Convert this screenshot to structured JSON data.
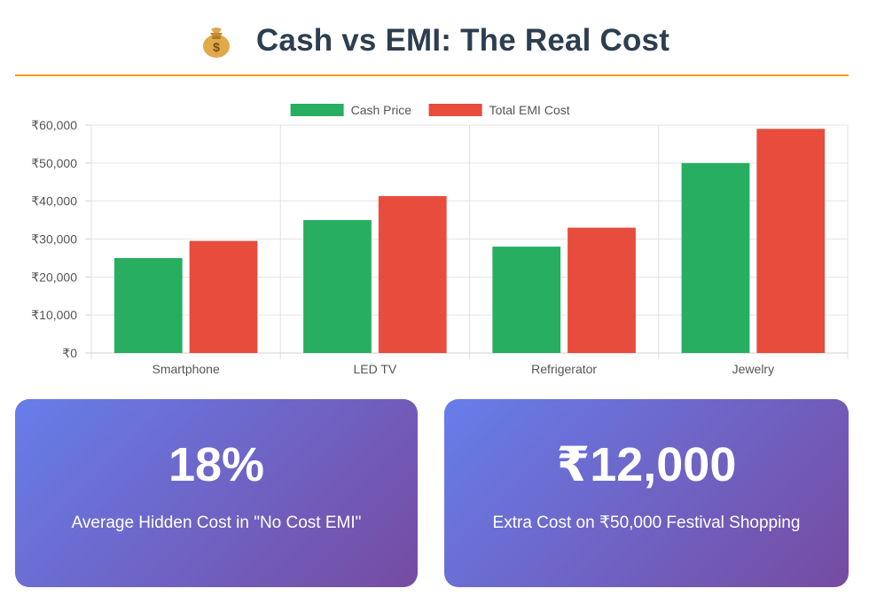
{
  "header": {
    "title": "Cash vs EMI: The Real Cost",
    "icon": "money-bag-icon"
  },
  "colors": {
    "cash": "#27ae60",
    "emi": "#e74c3c",
    "title": "#2c3e50",
    "divider": "#f39c12"
  },
  "chart_data": {
    "type": "bar",
    "categories": [
      "Smartphone",
      "LED TV",
      "Refrigerator",
      "Jewelry"
    ],
    "series": [
      {
        "name": "Cash Price",
        "values": [
          25000,
          35000,
          28000,
          50000
        ],
        "color": "#27ae60"
      },
      {
        "name": "Total EMI Cost",
        "values": [
          29500,
          41300,
          33000,
          59000
        ],
        "color": "#e74c3c"
      }
    ],
    "ylim": [
      0,
      60000
    ],
    "yticks": [
      0,
      10000,
      20000,
      30000,
      40000,
      50000,
      60000
    ],
    "ytick_labels": [
      "₹0",
      "₹10,000",
      "₹20,000",
      "₹30,000",
      "₹40,000",
      "₹50,000",
      "₹60,000"
    ],
    "legend": "top-center",
    "grid": true
  },
  "stats": [
    {
      "value": "18%",
      "label": "Average Hidden Cost in \"No Cost EMI\""
    },
    {
      "value": "₹12,000",
      "label": "Extra Cost on ₹50,000 Festival Shopping"
    }
  ]
}
